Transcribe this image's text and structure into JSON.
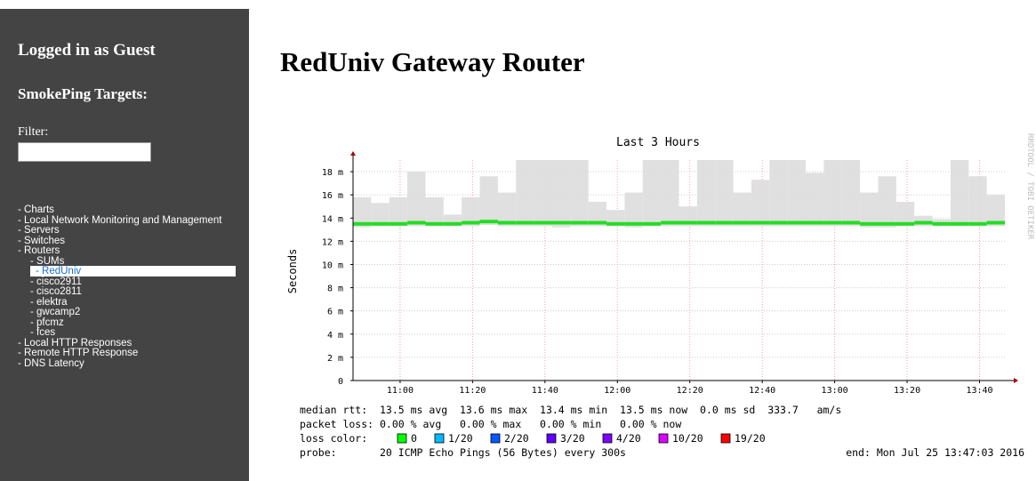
{
  "sidebar": {
    "login": "Logged in as Guest",
    "targets_heading": "SmokePing Targets:",
    "filter_label": "Filter:",
    "menu": [
      {
        "label": "- Charts",
        "level": 0
      },
      {
        "label": "- Local Network Monitoring and Management",
        "level": 0
      },
      {
        "label": "- Servers",
        "level": 0
      },
      {
        "label": "- Switches",
        "level": 0
      },
      {
        "label": "- Routers",
        "level": 0
      },
      {
        "label": "- SUMs",
        "level": 1
      },
      {
        "label": "- RedUniv",
        "level": 1,
        "selected": true
      },
      {
        "label": "- cisco2911",
        "level": 1
      },
      {
        "label": "- cisco2811",
        "level": 1
      },
      {
        "label": "- elektra",
        "level": 1
      },
      {
        "label": "- gwcamp2",
        "level": 1
      },
      {
        "label": "- pfcmz",
        "level": 1
      },
      {
        "label": "- fces",
        "level": 1
      },
      {
        "label": "- Local HTTP Responses",
        "level": 0
      },
      {
        "label": "- Remote HTTP Response",
        "level": 0
      },
      {
        "label": "- DNS Latency",
        "level": 0
      }
    ]
  },
  "page_title": "RedUniv Gateway Router",
  "chart_data": {
    "type": "smokeping",
    "title": "Last 3 Hours",
    "y_label": "Seconds",
    "watermark": "RRDTOOL / TOBI OETIKER",
    "xlim": [
      647,
      827
    ],
    "xticks": [
      {
        "value": 660,
        "label": "11:00"
      },
      {
        "value": 680,
        "label": "11:20"
      },
      {
        "value": 700,
        "label": "11:40"
      },
      {
        "value": 720,
        "label": "12:00"
      },
      {
        "value": 740,
        "label": "12:20"
      },
      {
        "value": 760,
        "label": "12:40"
      },
      {
        "value": 780,
        "label": "13:00"
      },
      {
        "value": 800,
        "label": "13:20"
      },
      {
        "value": 820,
        "label": "13:40"
      }
    ],
    "ylim": [
      0,
      19
    ],
    "yticks": [
      0,
      {
        "value": 2,
        "label": "2 m"
      },
      {
        "value": 4,
        "label": "4 m"
      },
      {
        "value": 6,
        "label": "6 m"
      },
      {
        "value": 8,
        "label": "8 m"
      },
      {
        "value": 10,
        "label": "10 m"
      },
      {
        "value": 12,
        "label": "12 m"
      },
      {
        "value": 14,
        "label": "14 m"
      },
      {
        "value": 16,
        "label": "16 m"
      },
      {
        "value": 18,
        "label": "18 m"
      }
    ],
    "grid": true,
    "bin_width": 5,
    "x": [
      647,
      652,
      657,
      662,
      667,
      672,
      677,
      682,
      687,
      692,
      697,
      702,
      707,
      712,
      717,
      722,
      727,
      732,
      737,
      742,
      747,
      752,
      757,
      762,
      767,
      772,
      777,
      782,
      787,
      792,
      797,
      802,
      807,
      812,
      817,
      822
    ],
    "series": [
      {
        "name": "median",
        "color": "#22dd22",
        "values": [
          13.5,
          13.5,
          13.5,
          13.6,
          13.5,
          13.5,
          13.6,
          13.7,
          13.6,
          13.6,
          13.6,
          13.6,
          13.6,
          13.6,
          13.5,
          13.5,
          13.5,
          13.6,
          13.6,
          13.6,
          13.6,
          13.6,
          13.6,
          13.6,
          13.6,
          13.6,
          13.6,
          13.6,
          13.5,
          13.5,
          13.5,
          13.6,
          13.5,
          13.5,
          13.5,
          13.6
        ]
      },
      {
        "name": "min",
        "color": "#999999",
        "values": [
          13.2,
          13.3,
          13.3,
          13.3,
          13.3,
          13.3,
          13.3,
          13.4,
          13.3,
          13.3,
          13.3,
          13.2,
          13.3,
          13.3,
          13.3,
          13.2,
          13.3,
          13.3,
          13.3,
          13.3,
          13.3,
          13.3,
          13.3,
          13.3,
          13.3,
          13.3,
          13.3,
          13.3,
          13.2,
          13.2,
          13.3,
          13.3,
          13.3,
          13.3,
          13.3,
          13.3
        ]
      },
      {
        "name": "max",
        "color": "#dddddd",
        "values": [
          15.8,
          15.3,
          15.8,
          18,
          15.8,
          14.3,
          15.8,
          17.6,
          16.2,
          19,
          19,
          19,
          19,
          15.4,
          14.7,
          16.2,
          19,
          19,
          15,
          19,
          19,
          16.2,
          17.3,
          19,
          19,
          17.9,
          19,
          19,
          16.2,
          17.6,
          15.4,
          14.2,
          13.9,
          19,
          17.6,
          16
        ]
      }
    ],
    "legend_lines": [
      "median rtt:  13.5 ms avg  13.6 ms max  13.4 ms min  13.5 ms now  0.0 ms sd  333.7   am/s",
      "packet loss: 0.00 % avg   0.00 % max   0.00 % min   0.00 % now"
    ],
    "loss_label": "loss color:",
    "loss_colors": [
      {
        "label": "0",
        "color": "#00ff00"
      },
      {
        "label": "1/20",
        "color": "#00b8ff"
      },
      {
        "label": "2/20",
        "color": "#0059ff"
      },
      {
        "label": "3/20",
        "color": "#5e00ff"
      },
      {
        "label": "4/20",
        "color": "#7e00ff"
      },
      {
        "label": "10/20",
        "color": "#dd00ff"
      },
      {
        "label": "19/20",
        "color": "#ff0000"
      }
    ],
    "probe": "probe:       20 ICMP Echo Pings (56 Bytes) every 300s",
    "end": "end: Mon Jul 25 13:47:03 2016"
  }
}
